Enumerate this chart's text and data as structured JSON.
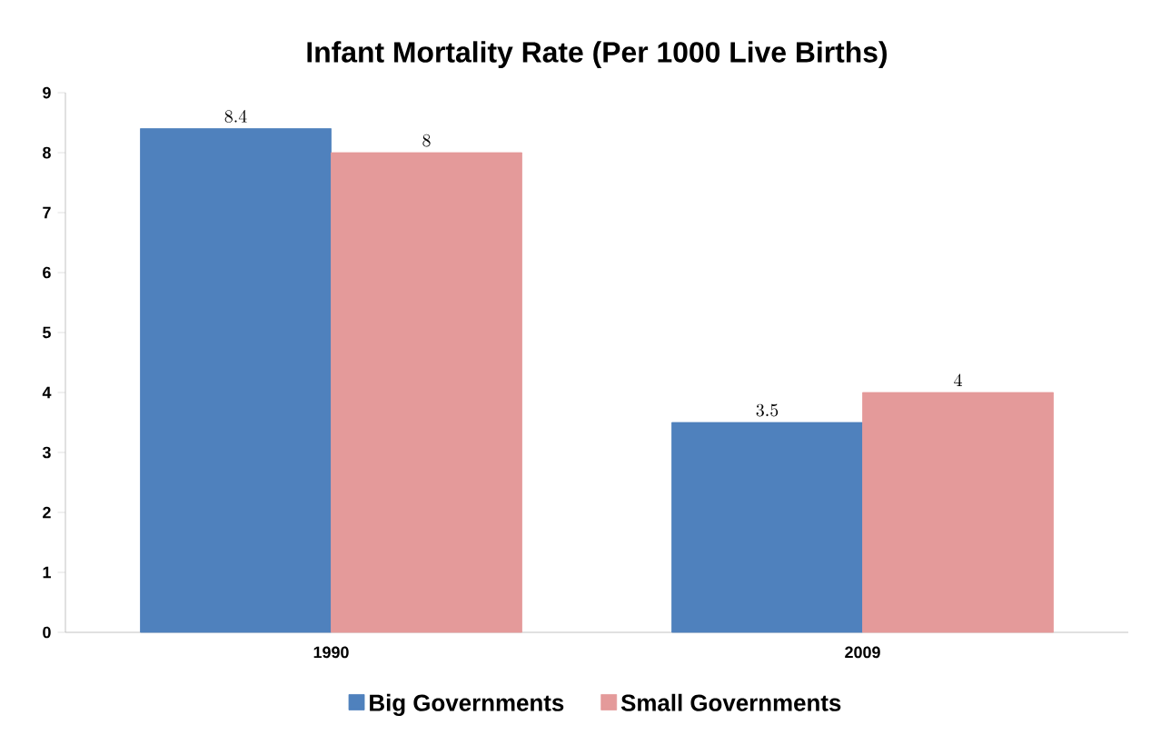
{
  "chart_data": {
    "type": "bar",
    "title": "Infant Mortality Rate (Per 1000 Live Births)",
    "categories": [
      "1990",
      "2009"
    ],
    "series": [
      {
        "name": "Big Governments",
        "color": "#4f81bd",
        "values": [
          8.4,
          3.5
        ]
      },
      {
        "name": "Small Governments",
        "color": "#e49a9a",
        "values": [
          8,
          4
        ]
      }
    ],
    "ylim": [
      0,
      9
    ],
    "yticks": [
      0,
      1,
      2,
      3,
      4,
      5,
      6,
      7,
      8,
      9
    ],
    "data_labels": true,
    "legend": "bottom"
  }
}
